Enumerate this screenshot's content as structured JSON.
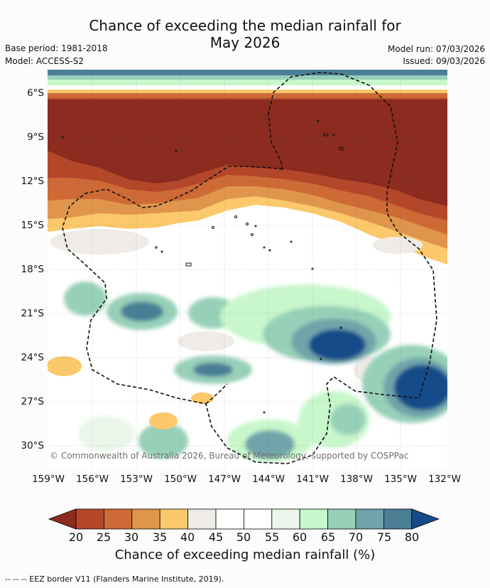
{
  "title": {
    "line1": "Chance of exceeding the median rainfall for",
    "line2": "May 2026"
  },
  "meta": {
    "base_period": "Base period: 1981-2018",
    "model": "Model: ACCESS-S2",
    "model_run": "Model run: 07/03/2026",
    "issued": "Issued: 09/03/2026"
  },
  "map": {
    "lat_labels": [
      "6°S",
      "9°S",
      "12°S",
      "15°S",
      "18°S",
      "21°S",
      "24°S",
      "27°S",
      "30°S"
    ],
    "lon_labels": [
      "159°W",
      "156°W",
      "153°W",
      "150°W",
      "147°W",
      "144°W",
      "141°W",
      "138°W",
      "135°W",
      "132°W"
    ],
    "copyright": "© Commonwealth of Australia 2026, Bureau of Meteorology, supported by COSPPac"
  },
  "colorbar": {
    "ticks": [
      "20",
      "25",
      "30",
      "35",
      "40",
      "45",
      "50",
      "55",
      "60",
      "65",
      "70",
      "75",
      "80"
    ],
    "colors": [
      "#8c2b1f",
      "#b4472a",
      "#cd6a35",
      "#e0954d",
      "#fbc86b",
      "#efebe7",
      "#ffffff",
      "#ffffff",
      "#eaf6ea",
      "#c7f7cb",
      "#97d0b8",
      "#6fa4aa",
      "#4a7f96",
      "#154b8a"
    ],
    "title": "Chance of exceeding median rainfall (%)"
  },
  "footer": "--  --  -- EEZ border V11 (Flanders Marine Institute, 2019)."
}
